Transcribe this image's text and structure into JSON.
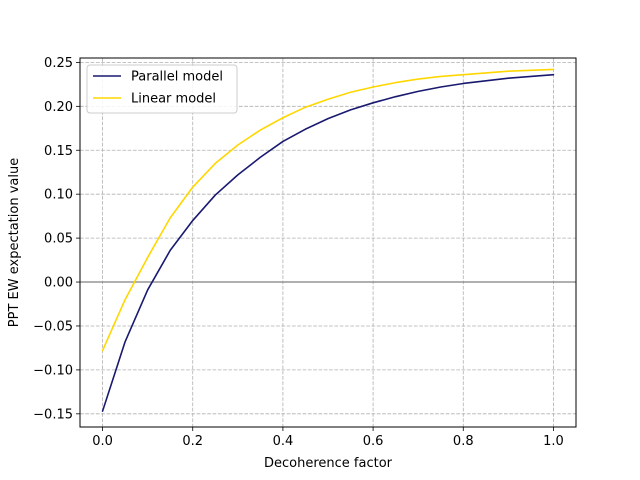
{
  "chart_data": {
    "type": "line",
    "xlabel": "Decoherence factor",
    "ylabel": "PPT EW expectation value",
    "xlim": [
      -0.05,
      1.05
    ],
    "ylim": [
      -0.165,
      0.255
    ],
    "xticks": [
      0.0,
      0.2,
      0.4,
      0.6,
      0.8,
      1.0
    ],
    "xtick_labels": [
      "0.0",
      "0.2",
      "0.4",
      "0.6",
      "0.8",
      "1.0"
    ],
    "yticks": [
      -0.15,
      -0.1,
      -0.05,
      0.0,
      0.05,
      0.1,
      0.15,
      0.2,
      0.25
    ],
    "ytick_labels": [
      "−0.15",
      "−0.10",
      "−0.05",
      "0.00",
      "0.05",
      "0.10",
      "0.15",
      "0.20",
      "0.25"
    ],
    "grid": true,
    "grid_style": "dashed",
    "reference_line_y": 0.0,
    "legend_position": "top-left",
    "x": [
      0.0,
      0.05,
      0.1,
      0.15,
      0.2,
      0.25,
      0.3,
      0.35,
      0.4,
      0.45,
      0.5,
      0.55,
      0.6,
      0.65,
      0.7,
      0.75,
      0.8,
      0.85,
      0.9,
      0.95,
      1.0
    ],
    "series": [
      {
        "name": "Parallel model",
        "color": "#191970",
        "values": [
          -0.147,
          -0.068,
          -0.009,
          0.036,
          0.07,
          0.099,
          0.122,
          0.142,
          0.16,
          0.174,
          0.186,
          0.196,
          0.204,
          0.211,
          0.217,
          0.222,
          0.226,
          0.229,
          0.232,
          0.234,
          0.236
        ]
      },
      {
        "name": "Linear model",
        "color": "#FFD700",
        "values": [
          -0.078,
          -0.02,
          0.028,
          0.073,
          0.108,
          0.135,
          0.156,
          0.173,
          0.187,
          0.199,
          0.208,
          0.216,
          0.222,
          0.227,
          0.231,
          0.234,
          0.236,
          0.238,
          0.24,
          0.241,
          0.242
        ]
      }
    ]
  }
}
